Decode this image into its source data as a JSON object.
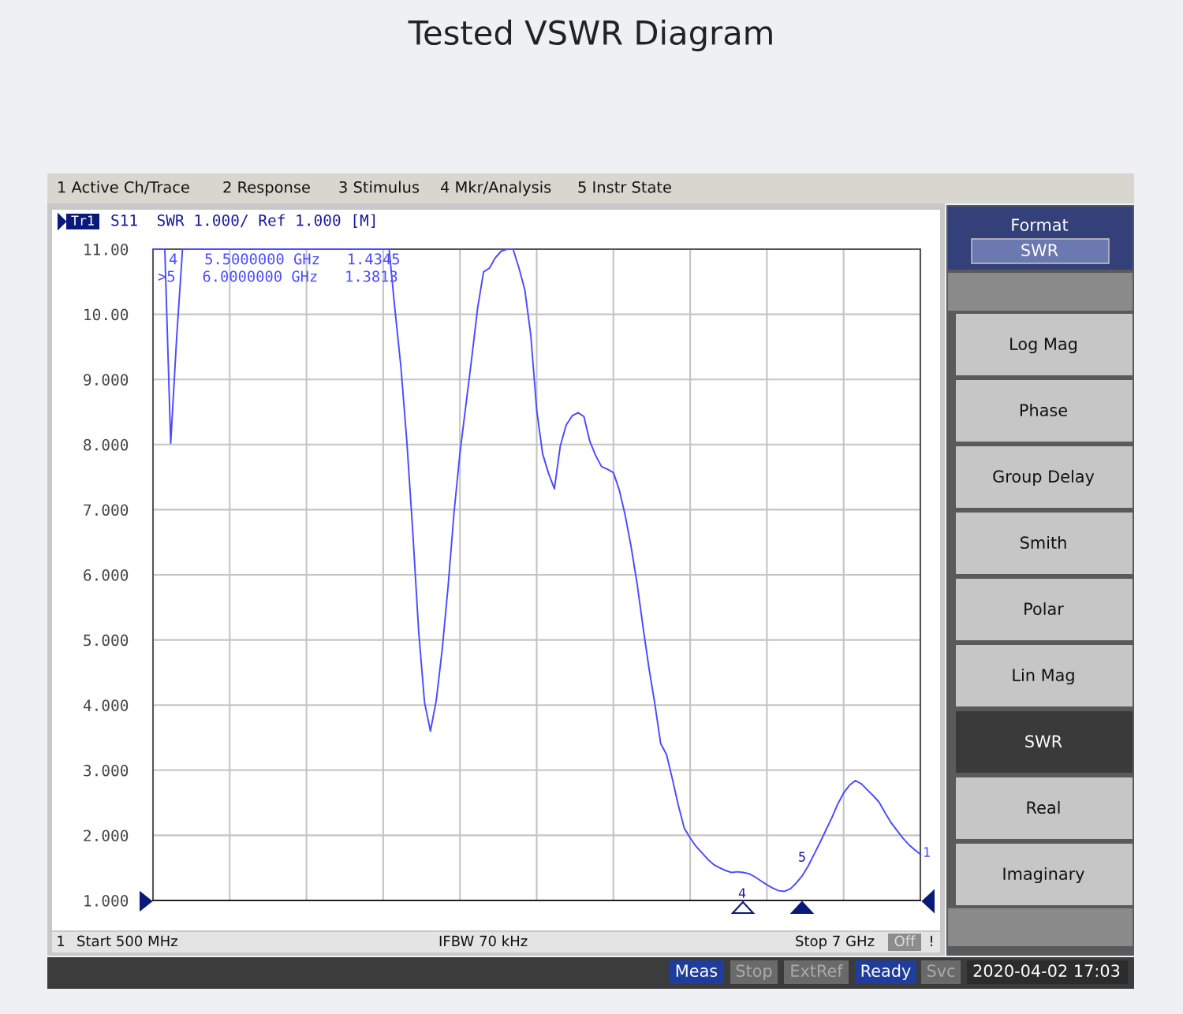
{
  "chart_data": {
    "type": "line",
    "title": "Tested VSWR Diagram",
    "categories": [
      null,
      null,
      null,
      null,
      null,
      null,
      null,
      null,
      null,
      null,
      null,
      null,
      null,
      null,
      null,
      null,
      null,
      null,
      null,
      null,
      null,
      null,
      null,
      null,
      null,
      null,
      null,
      null,
      null,
      null,
      null,
      null,
      null,
      null,
      null,
      null,
      null,
      null,
      null,
      null,
      null,
      null,
      null,
      null,
      null,
      null,
      null,
      null,
      null,
      null,
      null,
      null,
      null,
      null,
      null,
      null,
      null,
      null,
      null,
      null,
      null,
      null,
      null,
      null,
      null,
      null,
      null,
      null,
      null,
      null,
      null,
      null,
      null,
      null,
      null,
      null,
      null,
      null,
      null,
      null,
      null,
      null,
      null,
      null,
      null,
      null,
      null,
      null,
      null,
      null,
      null,
      null,
      null,
      null,
      null,
      null,
      null,
      null,
      null,
      null,
      null,
      null,
      null,
      null,
      null,
      null,
      null,
      null,
      null,
      null,
      null,
      null,
      null,
      null,
      null,
      null,
      null,
      null,
      null,
      null,
      null,
      null,
      null,
      null,
      null,
      null,
      null,
      null,
      null,
      null,
      null
    ],
    "series": [
      {
        "color": "#4b4bff",
        "values": [
          11,
          11,
          11,
          8.02,
          9.63,
          11,
          11,
          11,
          11,
          11,
          11,
          11,
          11,
          11,
          11,
          11,
          11,
          11,
          11,
          11,
          11,
          11,
          11,
          11,
          11,
          11,
          11,
          11,
          11,
          11,
          11,
          11,
          11,
          11,
          11,
          11,
          11,
          11,
          11,
          11,
          11,
          10.06,
          9.19,
          8.05,
          6.67,
          5.14,
          4.04,
          3.6,
          4.08,
          4.86,
          5.83,
          6.96,
          7.87,
          8.6,
          9.33,
          10.1,
          10.65,
          10.71,
          10.87,
          10.97,
          11,
          11,
          10.71,
          10.37,
          9.68,
          8.53,
          7.86,
          7.56,
          7.32,
          7.98,
          8.3,
          8.44,
          8.49,
          8.43,
          8.05,
          7.83,
          7.66,
          7.62,
          7.57,
          7.3,
          6.91,
          6.43,
          5.87,
          5.21,
          4.58,
          4.03,
          3.41,
          3.24,
          2.86,
          2.46,
          2.11,
          1.96,
          1.83,
          1.73,
          1.63,
          1.55,
          1.5,
          1.46,
          1.43,
          1.44,
          1.43,
          1.41,
          1.36,
          1.3,
          1.24,
          1.19,
          1.15,
          1.14,
          1.18,
          1.27,
          1.38,
          1.53,
          1.71,
          1.89,
          2.08,
          2.27,
          2.48,
          2.65,
          2.77,
          2.84,
          2.79,
          2.7,
          2.61,
          2.51,
          2.35,
          2.2,
          2.08,
          1.96,
          1.86,
          1.78,
          1.71
        ]
      }
    ],
    "ylim": [
      1,
      11
    ],
    "yticks": [
      {
        "value": 1,
        "label": "1.000"
      },
      {
        "value": 2,
        "label": "2.000"
      },
      {
        "value": 3,
        "label": "3.000"
      },
      {
        "value": 4,
        "label": "4.000"
      },
      {
        "value": 5,
        "label": "5.000"
      },
      {
        "value": 6,
        "label": "6.000"
      },
      {
        "value": 7,
        "label": "7.000"
      },
      {
        "value": 8,
        "label": "8.000"
      },
      {
        "value": 9,
        "label": "9.000"
      },
      {
        "value": 10,
        "label": "10.00"
      },
      {
        "value": 11,
        "label": "11.00"
      }
    ],
    "grid": true,
    "line_style": "solid",
    "marker": "none",
    "tick_labels": "y",
    "annotations": [
      "1 Active Ch/Trace",
      "2 Response",
      "3 Stimulus",
      "4 Mkr/Analysis",
      "5 Instr State",
      "Tr1",
      "S11  SWR 1.000/ Ref 1.000 [M]",
      "4   5.5000000 GHz   1.4345",
      ">5   6.0000000 GHz   1.3813",
      "1",
      "Start 500 MHz",
      "IFBW 70 kHz",
      "Stop 7 GHz",
      "Off",
      "!",
      "Meas",
      "Stop",
      "ExtRef",
      "Ready",
      "Svc",
      "2020-04-02 17:03",
      "Format",
      "SWR",
      "Log Mag",
      "Phase",
      "Group Delay",
      "Smith",
      "Polar",
      "Lin Mag",
      "SWR",
      "Real",
      "Imaginary",
      "4",
      "5",
      "1"
    ]
  }
}
